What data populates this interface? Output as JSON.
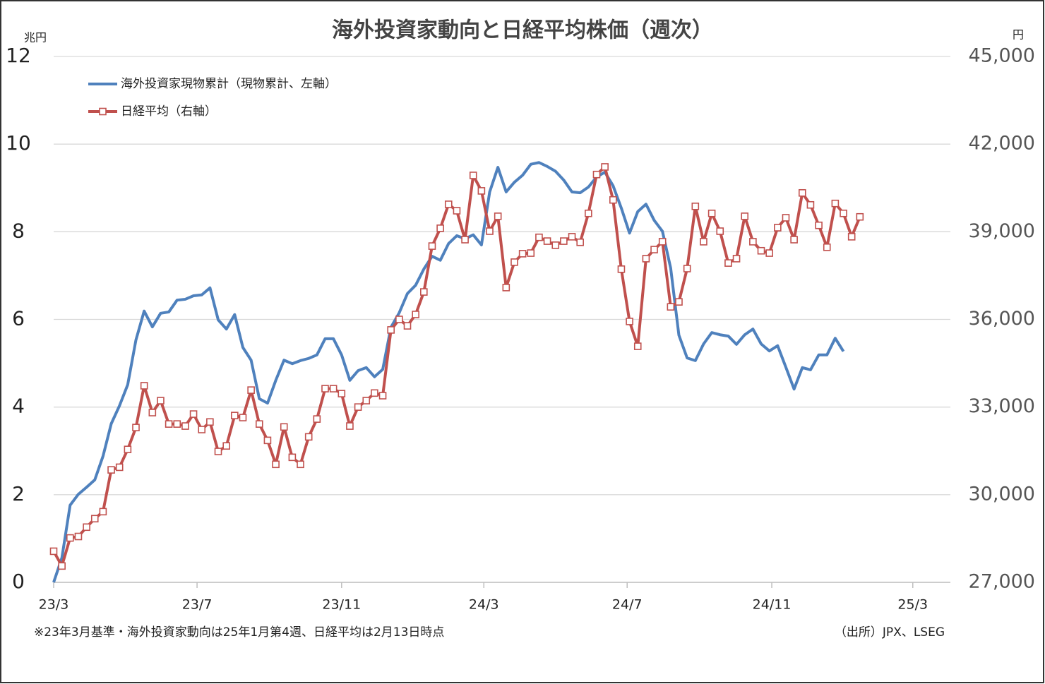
{
  "chart_data": {
    "type": "line",
    "title": "海外投資家動向と日経平均株価（週次）",
    "y_unit": "兆円",
    "y2_unit": "円",
    "note": "※23年3月基準・海外投資家動向は25年1月第4週、日経平均は2月13日時点",
    "source": "（出所）JPX、LSEG",
    "x": [
      0,
      1,
      2,
      3,
      4,
      5,
      6,
      7,
      8,
      9,
      10,
      11,
      12,
      13,
      14,
      15,
      16,
      17,
      18,
      19,
      20,
      21,
      22,
      23,
      24,
      25,
      26,
      27,
      28,
      29,
      30,
      31,
      32,
      33,
      34,
      35,
      36,
      37,
      38,
      39,
      40,
      41,
      42,
      43,
      44,
      45,
      46,
      47,
      48,
      49,
      50,
      51,
      52,
      53,
      54,
      55,
      56,
      57,
      58,
      59,
      60,
      61,
      62,
      63,
      64,
      65,
      66,
      67,
      68,
      69,
      70,
      71,
      72,
      73,
      74,
      75,
      76,
      77,
      78,
      79,
      80,
      81,
      82,
      83,
      84,
      85,
      86,
      87,
      88,
      89,
      90,
      91,
      92,
      93,
      94,
      95,
      96,
      97,
      98
    ],
    "xlim": [
      0,
      109
    ],
    "xticks": [
      {
        "value": 0,
        "label": "23/3"
      },
      {
        "value": 17.43,
        "label": "23/7"
      },
      {
        "value": 35,
        "label": "23/11"
      },
      {
        "value": 52.29,
        "label": "24/3"
      },
      {
        "value": 69.71,
        "label": "24/7"
      },
      {
        "value": 87.29,
        "label": "24/11"
      },
      {
        "value": 104.43,
        "label": "25/3"
      }
    ],
    "ylim": [
      0,
      12
    ],
    "yticks": [
      0,
      2,
      4,
      6,
      8,
      10,
      12
    ],
    "y2lim": [
      27000,
      45000
    ],
    "y2ticks": [
      {
        "value": 27000,
        "label": "27,000"
      },
      {
        "value": 30000,
        "label": "30,000"
      },
      {
        "value": 33000,
        "label": "33,000"
      },
      {
        "value": 36000,
        "label": "36,000"
      },
      {
        "value": 39000,
        "label": "39,000"
      },
      {
        "value": 42000,
        "label": "42,000"
      },
      {
        "value": 45000,
        "label": "45,000"
      }
    ],
    "grid": true,
    "legend": "top-left",
    "series": [
      {
        "name": "海外投資家現物累計（現物累計、左軸）",
        "color": "#4f81bd",
        "marker": "none",
        "values": [
          0,
          0.56,
          1.76,
          2.01,
          2.17,
          2.34,
          2.88,
          3.62,
          4.03,
          4.51,
          5.53,
          6.19,
          5.83,
          6.14,
          6.17,
          6.44,
          6.46,
          6.54,
          6.56,
          6.72,
          5.99,
          5.78,
          6.11,
          5.36,
          5.07,
          4.19,
          4.09,
          4.61,
          5.07,
          4.99,
          5.06,
          5.11,
          5.19,
          5.56,
          5.56,
          5.19,
          4.61,
          4.83,
          4.9,
          4.69,
          4.86,
          5.82,
          6.15,
          6.59,
          6.78,
          7.15,
          7.44,
          7.35,
          7.73,
          7.91,
          7.84,
          7.93,
          7.7,
          8.91,
          9.47,
          8.91,
          9.13,
          9.29,
          9.54,
          9.58,
          9.49,
          9.38,
          9.18,
          8.91,
          8.89,
          9.02,
          9.25,
          9.36,
          9.05,
          8.54,
          7.97,
          8.46,
          8.63,
          8.26,
          8.01,
          7.17,
          5.64,
          5.12,
          5.06,
          5.44,
          5.7,
          5.65,
          5.62,
          5.43,
          5.65,
          5.78,
          5.44,
          5.28,
          5.4,
          4.91,
          4.41,
          4.9,
          4.85,
          5.19,
          5.19,
          5.57,
          5.27,
          null,
          null
        ]
      },
      {
        "name": "日経平均（右軸）",
        "color": "#c0504d",
        "marker": "square",
        "axis": "y2",
        "values": [
          28065,
          27560,
          28520,
          28570,
          28890,
          29180,
          29420,
          30850,
          30940,
          31550,
          32300,
          33730,
          32810,
          33220,
          32420,
          32420,
          32350,
          32760,
          32230,
          32490,
          31480,
          31670,
          32710,
          32640,
          33580,
          32420,
          31860,
          31040,
          32320,
          31280,
          31040,
          31980,
          32590,
          33630,
          33630,
          33460,
          32350,
          33000,
          33220,
          33480,
          33390,
          35640,
          36000,
          35780,
          36170,
          36940,
          38510,
          39120,
          39940,
          39720,
          38730,
          40930,
          40400,
          39020,
          39530,
          37090,
          37960,
          38250,
          38270,
          38810,
          38680,
          38540,
          38680,
          38830,
          38640,
          39630,
          40960,
          41220,
          40090,
          37720,
          35930,
          35080,
          38080,
          38390,
          38660,
          36430,
          36600,
          37740,
          39870,
          38660,
          39630,
          39020,
          37930,
          38080,
          39530,
          38660,
          38350,
          38270,
          39140,
          39480,
          38730,
          40330,
          39920,
          39220,
          38470,
          39970,
          39630,
          38830,
          39510
        ]
      }
    ]
  }
}
